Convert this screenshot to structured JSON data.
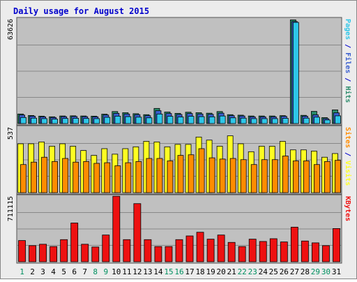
{
  "colors": {
    "background": "#ececec",
    "plot_bg": "#c0c0c0",
    "title": "#0000cc",
    "pages": "#2ec6e8",
    "files": "#3a5fcf",
    "hits": "#2a8a6a",
    "sites": "#ff8c00",
    "visits": "#ffff22",
    "kbytes": "#ee1111",
    "day_weekday": "#000000",
    "day_weekend": "#009060"
  },
  "chart_data": {
    "type": "bar",
    "title": "Daily usage for August 2015",
    "days": [
      "1",
      "2",
      "3",
      "4",
      "5",
      "6",
      "7",
      "8",
      "9",
      "10",
      "11",
      "12",
      "13",
      "14",
      "15",
      "16",
      "17",
      "18",
      "19",
      "20",
      "21",
      "22",
      "23",
      "24",
      "25",
      "26",
      "27",
      "28",
      "29",
      "30",
      "31"
    ],
    "weekend_days": [
      "1",
      "8",
      "9",
      "15",
      "16",
      "22",
      "23",
      "29",
      "30"
    ],
    "panels": [
      {
        "name": "hits-files-pages",
        "max_label": "63626",
        "ymax": 63626,
        "side_labels": [
          {
            "text": "Pages",
            "color": "pages"
          },
          {
            "text": " / ",
            "color": "title"
          },
          {
            "text": "Files",
            "color": "files"
          },
          {
            "text": " / ",
            "color": "title"
          },
          {
            "text": "Hits",
            "color": "hits"
          }
        ],
        "series": [
          {
            "name": "Hits",
            "color": "hits",
            "values": [
              5800,
              4900,
              4500,
              4100,
              4600,
              4700,
              4600,
              4500,
              5700,
              7300,
              6600,
              6000,
              5400,
              9200,
              7000,
              6200,
              6900,
              6600,
              6300,
              7300,
              5400,
              5100,
              4600,
              4600,
              4600,
              4800,
              63000,
              5000,
              7400,
              3600,
              8300
            ]
          },
          {
            "name": "Files",
            "color": "files",
            "values": [
              5200,
              4500,
              4100,
              3700,
              4200,
              4300,
              4200,
              4100,
              5200,
              6200,
              5800,
              5400,
              4800,
              7800,
              6100,
              5500,
              6100,
              5800,
              5600,
              6300,
              4800,
              4600,
              4100,
              4100,
              4100,
              4400,
              62000,
              4500,
              5300,
              3000,
              6500
            ]
          },
          {
            "name": "Pages",
            "color": "pages",
            "values": [
              3700,
              3300,
              3000,
              2700,
              3100,
              3200,
              3100,
              3000,
              3800,
              4500,
              4200,
              3900,
              3500,
              5800,
              4400,
              4000,
              4400,
              4200,
              4100,
              4600,
              3500,
              3300,
              3000,
              3000,
              3000,
              3200,
              61500,
              3300,
              3900,
              2200,
              4700
            ]
          }
        ]
      },
      {
        "name": "visits-sites",
        "max_label": "537",
        "ymax": 537,
        "side_labels": [
          {
            "text": "Sites",
            "color": "sites"
          },
          {
            "text": " / ",
            "color": "title"
          },
          {
            "text": "Visits",
            "color": "visits"
          }
        ],
        "series": [
          {
            "name": "Visits",
            "color": "visits",
            "values": [
              400,
              400,
              415,
              380,
              400,
              380,
              345,
              305,
              360,
              315,
              360,
              375,
              420,
              415,
              375,
              395,
              395,
              455,
              430,
              380,
              465,
              400,
              335,
              380,
              380,
              420,
              350,
              350,
              340,
              290,
              320
            ]
          },
          {
            "name": "Sites",
            "color": "sites",
            "values": [
              230,
              250,
              290,
              255,
              280,
              250,
              255,
              240,
              245,
              220,
              245,
              255,
              280,
              280,
              260,
              305,
              310,
              360,
              285,
              275,
              280,
              270,
              230,
              270,
              270,
              300,
              260,
              260,
              230,
              255,
              265
            ]
          }
        ]
      },
      {
        "name": "kbytes",
        "max_label": "711115",
        "ymax": 711115,
        "side_labels": [
          {
            "text": "KBytes",
            "color": "kbytes"
          }
        ],
        "series": [
          {
            "name": "KBytes",
            "color": "kbytes",
            "values": [
              230000,
              175000,
              190000,
              165000,
              240000,
              420000,
              190000,
              160000,
              290000,
              710000,
              240000,
              630000,
              240000,
              165000,
              165000,
              240000,
              280000,
              320000,
              245000,
              290000,
              210000,
              165000,
              245000,
              220000,
              250000,
              215000,
              375000,
              225000,
              205000,
              175000,
              360000
            ]
          }
        ]
      }
    ]
  }
}
